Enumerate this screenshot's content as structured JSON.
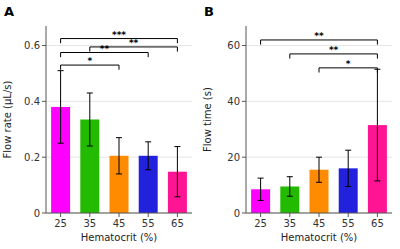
{
  "chart_data": [
    {
      "type": "bar",
      "title": "A",
      "categories": [
        "25",
        "35",
        "45",
        "55",
        "65"
      ],
      "values": [
        0.38,
        0.335,
        0.205,
        0.205,
        0.148
      ],
      "errors": [
        0.13,
        0.095,
        0.065,
        0.05,
        0.09
      ],
      "colors": [
        "#FF00FF",
        "#22BB00",
        "#FF8C00",
        "#2222DD",
        "#FF1493"
      ],
      "ylabel": "Flow rate (μL/s)",
      "xlabel": "Hematocrit (%)",
      "ylim": [
        0,
        0.67
      ],
      "yticks": [
        0.0,
        0.2,
        0.4,
        0.6
      ],
      "annotations": [
        {
          "from": "25",
          "to": "45",
          "y": 0.53,
          "label": "*"
        },
        {
          "from": "25",
          "to": "55",
          "y": 0.575,
          "label": "**"
        },
        {
          "from": "35",
          "to": "65",
          "y": 0.595,
          "label": "**"
        },
        {
          "from": "25",
          "to": "65",
          "y": 0.625,
          "label": "***"
        }
      ]
    },
    {
      "type": "bar",
      "title": "B",
      "categories": [
        "25",
        "35",
        "45",
        "55",
        "65"
      ],
      "values": [
        8.5,
        9.5,
        15.5,
        16.0,
        31.5
      ],
      "errors": [
        4.0,
        3.5,
        4.5,
        6.5,
        20.0
      ],
      "colors": [
        "#FF00FF",
        "#22BB00",
        "#FF8C00",
        "#2222DD",
        "#FF1493"
      ],
      "ylabel": "Flow time (s)",
      "xlabel": "Hematocrit (%)",
      "ylim": [
        0,
        67
      ],
      "yticks": [
        0,
        20,
        40,
        60
      ],
      "annotations": [
        {
          "from": "45",
          "to": "65",
          "y": 52,
          "label": "*"
        },
        {
          "from": "35",
          "to": "65",
          "y": 57,
          "label": "**"
        },
        {
          "from": "25",
          "to": "65",
          "y": 62,
          "label": "**"
        }
      ]
    }
  ]
}
